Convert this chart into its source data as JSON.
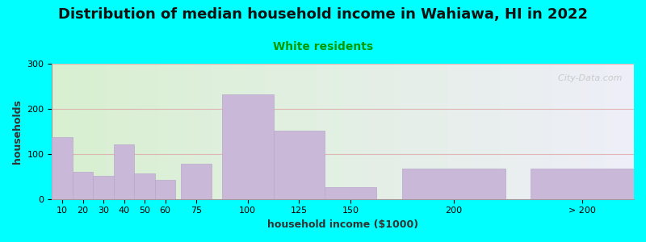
{
  "title": "Distribution of median household income in Wahiawa, HI in 2022",
  "subtitle": "White residents",
  "xlabel": "household income ($1000)",
  "ylabel": "households",
  "bar_color": "#C9B8D8",
  "bar_edge_color": "#B8A8CC",
  "bar_left_edges": [
    5,
    15,
    25,
    35,
    45,
    55,
    67.5,
    87.5,
    112.5,
    137.5,
    175,
    237.5
  ],
  "bar_widths": [
    10,
    10,
    10,
    10,
    10,
    10,
    15,
    25,
    25,
    25,
    50,
    50
  ],
  "values": [
    137,
    60,
    52,
    122,
    57,
    43,
    78,
    232,
    152,
    26,
    68,
    68
  ],
  "xtick_positions": [
    10,
    20,
    30,
    40,
    50,
    60,
    75,
    100,
    125,
    150,
    200,
    262.5
  ],
  "xtick_labels": [
    "10",
    "20",
    "30",
    "40",
    "50",
    "60",
    "75",
    "100",
    "125",
    "150",
    "200",
    "> 200"
  ],
  "xlim": [
    5,
    287.5
  ],
  "ylim": [
    0,
    300
  ],
  "yticks": [
    0,
    100,
    200,
    300
  ],
  "background_color": "#00FFFF",
  "plot_bg_gradient_top_left": "#d8f0d0",
  "plot_bg_gradient_right": "#eeeef8",
  "grid_color": "#E0A8A8",
  "title_fontsize": 13,
  "subtitle_fontsize": 10,
  "subtitle_color": "#009900",
  "axis_label_fontsize": 9,
  "tick_fontsize": 8,
  "watermark": "  City-Data.com"
}
